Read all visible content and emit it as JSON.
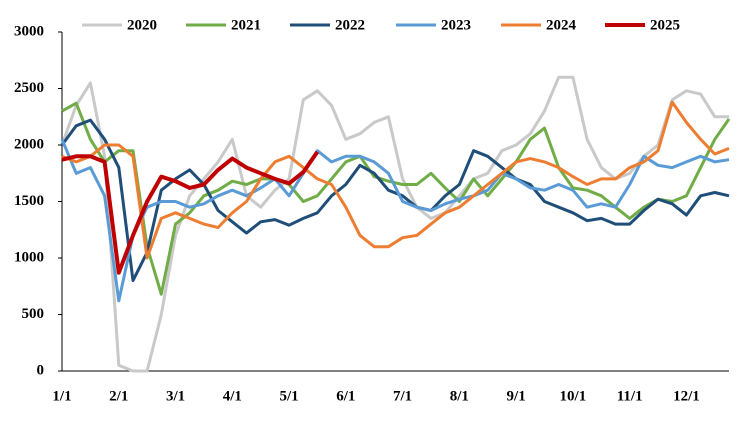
{
  "chart_data": {
    "type": "line",
    "categories": [
      "1/1",
      null,
      null,
      null,
      "2/1",
      null,
      null,
      null,
      "3/1",
      null,
      null,
      null,
      "4/1",
      null,
      null,
      null,
      "5/1",
      null,
      null,
      null,
      "6/1",
      null,
      null,
      null,
      "7/1",
      null,
      null,
      null,
      "8/1",
      null,
      null,
      null,
      "9/1",
      null,
      null,
      null,
      "10/1",
      null,
      null,
      null,
      "11/1",
      null,
      null,
      null,
      "12/1",
      null,
      null,
      null
    ],
    "ylim": [
      0,
      3000
    ],
    "yticks": [
      0,
      500,
      1000,
      1500,
      2000,
      2500,
      3000
    ],
    "grid": false,
    "legend": "top",
    "series": [
      {
        "name": "2020",
        "color": "#c9c9c9",
        "values": [
          2000,
          2350,
          2550,
          1900,
          50,
          0,
          0,
          500,
          1200,
          1550,
          1700,
          1850,
          2050,
          1550,
          1450,
          1600,
          1700,
          2400,
          2480,
          2350,
          2050,
          2100,
          2200,
          2250,
          1700,
          1450,
          1350,
          1400,
          1550,
          1700,
          1750,
          1950,
          2000,
          2100,
          2300,
          2600,
          2600,
          2050,
          1800,
          1700,
          1750,
          1900,
          2000,
          2400,
          2480,
          2450,
          2250,
          2250
        ]
      },
      {
        "name": "2021",
        "color": "#70ad47",
        "values": [
          2300,
          2370,
          2050,
          1850,
          1950,
          1950,
          1100,
          680,
          1300,
          1400,
          1550,
          1600,
          1680,
          1650,
          1700,
          1700,
          1650,
          1500,
          1550,
          1700,
          1850,
          1900,
          1720,
          1680,
          1650,
          1650,
          1750,
          1620,
          1500,
          1700,
          1550,
          1700,
          1850,
          2050,
          2150,
          1800,
          1620,
          1600,
          1550,
          1450,
          1350,
          1450,
          1520,
          1500,
          1550,
          1800,
          2050,
          2230
        ]
      },
      {
        "name": "2022",
        "color": "#1f4e79",
        "values": [
          2000,
          2170,
          2220,
          2050,
          1800,
          800,
          1050,
          1600,
          1700,
          1780,
          1650,
          1420,
          1320,
          1220,
          1320,
          1340,
          1290,
          1350,
          1400,
          1550,
          1650,
          1820,
          1750,
          1600,
          1550,
          1450,
          1420,
          1550,
          1650,
          1950,
          1900,
          1800,
          1700,
          1650,
          1500,
          1450,
          1400,
          1330,
          1350,
          1300,
          1300,
          1420,
          1520,
          1480,
          1380,
          1550,
          1580,
          1550
        ]
      },
      {
        "name": "2023",
        "color": "#5b9bd5",
        "values": [
          2050,
          1750,
          1800,
          1550,
          620,
          1200,
          1450,
          1500,
          1500,
          1450,
          1480,
          1550,
          1600,
          1550,
          1620,
          1700,
          1550,
          1750,
          1950,
          1850,
          1900,
          1900,
          1850,
          1750,
          1500,
          1450,
          1420,
          1480,
          1520,
          1550,
          1600,
          1750,
          1700,
          1620,
          1600,
          1650,
          1600,
          1450,
          1480,
          1450,
          1650,
          1900,
          1820,
          1800,
          1850,
          1900,
          1850,
          1870
        ]
      },
      {
        "name": "2024",
        "color": "#ed7d31",
        "values": [
          1900,
          1850,
          1900,
          2000,
          2000,
          1900,
          1000,
          1350,
          1400,
          1350,
          1300,
          1270,
          1400,
          1500,
          1700,
          1850,
          1900,
          1800,
          1700,
          1650,
          1450,
          1200,
          1100,
          1100,
          1180,
          1200,
          1300,
          1400,
          1450,
          1550,
          1650,
          1750,
          1850,
          1880,
          1850,
          1800,
          1720,
          1650,
          1700,
          1700,
          1800,
          1850,
          1950,
          2380,
          2200,
          2050,
          1920,
          1970
        ]
      },
      {
        "name": "2025",
        "color": "#c00000",
        "values": [
          1870,
          1900,
          1900,
          1850,
          870,
          1200,
          1500,
          1720,
          1680,
          1620,
          1650,
          1780,
          1880,
          1800,
          1750,
          1700,
          1660,
          1760,
          1940,
          null,
          null,
          null,
          null,
          null,
          null,
          null,
          null,
          null,
          null,
          null,
          null,
          null,
          null,
          null,
          null,
          null,
          null,
          null,
          null,
          null,
          null,
          null,
          null,
          null,
          null,
          null,
          null,
          null
        ]
      }
    ]
  }
}
